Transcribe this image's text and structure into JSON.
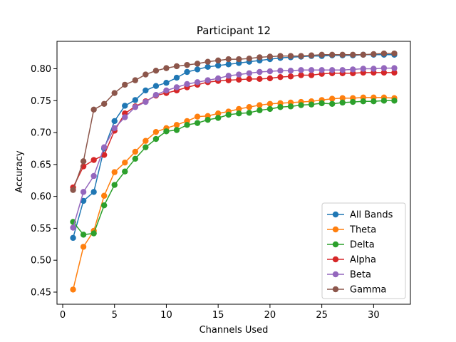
{
  "chart_data": {
    "type": "line",
    "title": "Participant 12",
    "xlabel": "Channels Used",
    "ylabel": "Accuracy",
    "xlim": [
      -0.55,
      33.55
    ],
    "ylim": [
      0.431,
      0.843
    ],
    "xticks": [
      0,
      5,
      10,
      15,
      20,
      25,
      30
    ],
    "yticks": [
      0.45,
      0.5,
      0.55,
      0.6,
      0.65,
      0.7,
      0.75,
      0.8
    ],
    "legend_position": "lower right",
    "grid": false,
    "x": [
      1,
      2,
      3,
      4,
      5,
      6,
      7,
      8,
      9,
      10,
      11,
      12,
      13,
      14,
      15,
      16,
      17,
      18,
      19,
      20,
      21,
      22,
      23,
      24,
      25,
      26,
      27,
      28,
      29,
      30,
      31,
      32
    ],
    "series": [
      {
        "name": "All Bands",
        "color": "#1f77b4",
        "values": [
          0.535,
          0.593,
          0.607,
          0.675,
          0.718,
          0.742,
          0.751,
          0.766,
          0.773,
          0.778,
          0.786,
          0.795,
          0.799,
          0.803,
          0.805,
          0.807,
          0.809,
          0.811,
          0.813,
          0.815,
          0.817,
          0.818,
          0.819,
          0.82,
          0.82,
          0.821,
          0.821,
          0.821,
          0.822,
          0.822,
          0.822,
          0.822
        ]
      },
      {
        "name": "Theta",
        "color": "#ff7f0e",
        "values": [
          0.454,
          0.521,
          0.546,
          0.601,
          0.638,
          0.653,
          0.67,
          0.687,
          0.701,
          0.707,
          0.712,
          0.718,
          0.725,
          0.726,
          0.73,
          0.733,
          0.737,
          0.74,
          0.743,
          0.745,
          0.746,
          0.747,
          0.748,
          0.749,
          0.751,
          0.753,
          0.754,
          0.754,
          0.755,
          0.755,
          0.755,
          0.754
        ]
      },
      {
        "name": "Delta",
        "color": "#2ca02c",
        "values": [
          0.56,
          0.54,
          0.542,
          0.586,
          0.618,
          0.639,
          0.659,
          0.677,
          0.69,
          0.702,
          0.704,
          0.712,
          0.715,
          0.72,
          0.723,
          0.728,
          0.73,
          0.731,
          0.735,
          0.737,
          0.74,
          0.741,
          0.743,
          0.744,
          0.746,
          0.745,
          0.747,
          0.748,
          0.749,
          0.749,
          0.75,
          0.75
        ]
      },
      {
        "name": "Alpha",
        "color": "#d62728",
        "values": [
          0.614,
          0.647,
          0.657,
          0.665,
          0.703,
          0.73,
          0.741,
          0.749,
          0.758,
          0.762,
          0.766,
          0.771,
          0.775,
          0.779,
          0.781,
          0.782,
          0.783,
          0.784,
          0.784,
          0.785,
          0.787,
          0.788,
          0.79,
          0.79,
          0.792,
          0.793,
          0.793,
          0.793,
          0.794,
          0.794,
          0.794,
          0.794
        ]
      },
      {
        "name": "Beta",
        "color": "#9467bd",
        "values": [
          0.551,
          0.607,
          0.632,
          0.677,
          0.707,
          0.724,
          0.74,
          0.748,
          0.759,
          0.766,
          0.771,
          0.776,
          0.779,
          0.782,
          0.785,
          0.789,
          0.791,
          0.793,
          0.795,
          0.796,
          0.797,
          0.797,
          0.798,
          0.798,
          0.798,
          0.798,
          0.798,
          0.799,
          0.8,
          0.8,
          0.801,
          0.801
        ]
      },
      {
        "name": "Gamma",
        "color": "#8c564b",
        "values": [
          0.61,
          0.655,
          0.736,
          0.745,
          0.762,
          0.775,
          0.782,
          0.791,
          0.797,
          0.801,
          0.804,
          0.806,
          0.808,
          0.811,
          0.813,
          0.815,
          0.815,
          0.816,
          0.818,
          0.819,
          0.82,
          0.82,
          0.82,
          0.821,
          0.822,
          0.822,
          0.822,
          0.822,
          0.822,
          0.823,
          0.824,
          0.824
        ]
      }
    ]
  }
}
